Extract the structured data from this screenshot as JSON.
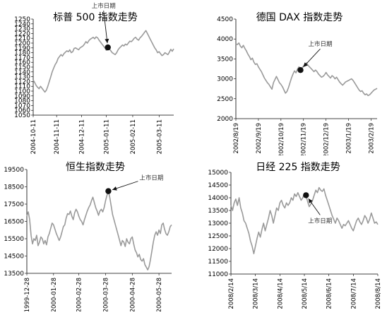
{
  "chart_data": [
    {
      "type": "line",
      "title": "标普 500 指数走势",
      "annotation": "上市日期",
      "ylim": [
        1050,
        1250
      ],
      "yticks": [
        1050,
        1060,
        1070,
        1080,
        1090,
        1100,
        1110,
        1120,
        1130,
        1140,
        1150,
        1160,
        1170,
        1180,
        1190,
        1200,
        1210,
        1220,
        1230,
        1240,
        1250
      ],
      "xtick_labels": [
        "2004-10-11",
        "2004-11-11",
        "2004-12-11",
        "2005-01-11",
        "2005-02-11",
        "2005-03-11"
      ],
      "xtick_index": [
        0,
        16,
        33,
        50,
        68,
        86
      ],
      "marker": {
        "x_index": 51,
        "y": 1191
      },
      "values": [
        1123,
        1118,
        1112,
        1108,
        1105,
        1110,
        1106,
        1102,
        1098,
        1102,
        1110,
        1120,
        1130,
        1140,
        1148,
        1155,
        1160,
        1168,
        1172,
        1176,
        1173,
        1178,
        1181,
        1184,
        1182,
        1186,
        1180,
        1182,
        1189,
        1190,
        1188,
        1186,
        1190,
        1192,
        1194,
        1198,
        1203,
        1200,
        1205,
        1208,
        1210,
        1212,
        1209,
        1213,
        1211,
        1206,
        1202,
        1198,
        1194,
        1190,
        1185,
        1191,
        1188,
        1184,
        1180,
        1178,
        1176,
        1180,
        1186,
        1190,
        1193,
        1196,
        1194,
        1198,
        1196,
        1200,
        1204,
        1203,
        1206,
        1210,
        1212,
        1208,
        1206,
        1211,
        1214,
        1218,
        1222,
        1226,
        1220,
        1214,
        1208,
        1202,
        1196,
        1190,
        1186,
        1180,
        1182,
        1178,
        1174,
        1176,
        1180,
        1178,
        1176,
        1181,
        1187,
        1183,
        1188
      ]
    },
    {
      "type": "line",
      "title": "德国 DAX 指数走势",
      "annotation": "上市日期",
      "ylim": [
        2000,
        4500
      ],
      "yticks": [
        2000,
        2500,
        3000,
        3500,
        4000,
        4500
      ],
      "xtick_labels": [
        "2002/8/19",
        "2002/9/19",
        "2002/10/19",
        "2002/11/19",
        "2002/12/19",
        "2003/1/19",
        "2003/2/19"
      ],
      "xtick_index": [
        0,
        15,
        30,
        45,
        60,
        75,
        90
      ],
      "marker": {
        "x_index": 43,
        "y": 3220
      },
      "values": [
        3880,
        3860,
        3900,
        3820,
        3780,
        3840,
        3760,
        3700,
        3620,
        3560,
        3480,
        3520,
        3420,
        3360,
        3380,
        3300,
        3240,
        3180,
        3100,
        3020,
        2960,
        2900,
        2860,
        2800,
        2740,
        2900,
        2980,
        3060,
        2980,
        2900,
        2860,
        2800,
        2720,
        2640,
        2680,
        2780,
        2900,
        3020,
        3120,
        3200,
        3150,
        3240,
        3300,
        3220,
        3260,
        3320,
        3360,
        3400,
        3340,
        3300,
        3260,
        3220,
        3180,
        3220,
        3180,
        3120,
        3080,
        3040,
        3060,
        3100,
        3160,
        3100,
        3060,
        3020,
        3080,
        3050,
        3000,
        3040,
        2980,
        2920,
        2880,
        2840,
        2880,
        2920,
        2940,
        2960,
        2980,
        3000,
        2960,
        2900,
        2840,
        2780,
        2720,
        2680,
        2700,
        2640,
        2600,
        2620,
        2580,
        2600,
        2640,
        2680,
        2720,
        2740,
        2760
      ]
    },
    {
      "type": "line",
      "title": "恒生指数走势",
      "annotation": "上市日期",
      "ylim": [
        13500,
        19500
      ],
      "yticks": [
        13500,
        14500,
        15500,
        16500,
        17500,
        18500,
        19500
      ],
      "xtick_labels": [
        "1999-12-28",
        "2000-01-28",
        "2000-02-28",
        "2000-03-28",
        "2000-04-28",
        "2000-05-28"
      ],
      "xtick_index": [
        0,
        19,
        37,
        56,
        75,
        94
      ],
      "marker": {
        "x_index": 58,
        "y": 18250
      },
      "values": [
        16800,
        17050,
        16600,
        15700,
        15200,
        15500,
        15400,
        15700,
        15100,
        15300,
        15600,
        15500,
        15200,
        15400,
        15150,
        15600,
        15800,
        16100,
        16400,
        16300,
        16050,
        15800,
        15600,
        15400,
        15600,
        15900,
        16200,
        16300,
        16700,
        16950,
        16900,
        17100,
        16800,
        16600,
        17000,
        17200,
        17050,
        16800,
        16600,
        16500,
        16300,
        16600,
        16850,
        17100,
        17300,
        17450,
        17700,
        17900,
        17600,
        17300,
        17100,
        16850,
        17100,
        17200,
        17050,
        17300,
        17700,
        18000,
        18250,
        17900,
        17400,
        16900,
        16600,
        16300,
        16000,
        15700,
        15400,
        15100,
        15400,
        15300,
        15050,
        15500,
        15300,
        15200,
        15500,
        15600,
        15200,
        14850,
        14700,
        14450,
        14600,
        14300,
        14200,
        14350,
        14000,
        13850,
        13700,
        13900,
        14300,
        14800,
        15300,
        15700,
        15900,
        15700,
        16000,
        15800,
        16300,
        16400,
        16050,
        15800,
        15700,
        15900,
        16200,
        16300
      ]
    },
    {
      "type": "line",
      "title": "日经 225 指数走势",
      "annotation": "上市日期",
      "ylim": [
        11000,
        15000
      ],
      "yticks": [
        11000,
        11500,
        12000,
        12500,
        13000,
        13500,
        14000,
        14500,
        15000
      ],
      "xtick_labels": [
        "2008/2/14",
        "2008/3/14",
        "2008/4/14",
        "2008/5/14",
        "2008/6/14",
        "2008/7/14",
        "2008/8/14"
      ],
      "xtick_index": [
        0,
        15,
        30,
        45,
        60,
        75,
        90
      ],
      "marker": {
        "x_index": 46,
        "y": 14100
      },
      "values": [
        13700,
        13500,
        13800,
        13950,
        13700,
        14000,
        13600,
        13400,
        13100,
        13000,
        12800,
        12600,
        12300,
        12100,
        11800,
        12100,
        12400,
        12650,
        12450,
        12750,
        13000,
        12700,
        12950,
        13200,
        13500,
        13300,
        13000,
        13300,
        13600,
        13500,
        13800,
        13900,
        13700,
        13600,
        13800,
        13700,
        13800,
        14000,
        13900,
        14150,
        14050,
        14200,
        14050,
        13900,
        14000,
        14150,
        14100,
        13850,
        13650,
        13750,
        13900,
        14100,
        14300,
        14200,
        14400,
        14300,
        14250,
        14350,
        14100,
        13900,
        13700,
        13500,
        13300,
        13150,
        13000,
        13200,
        13100,
        12950,
        12800,
        12950,
        12900,
        13000,
        13100,
        12950,
        12800,
        12700,
        12900,
        13100,
        13200,
        13050,
        12950,
        13100,
        13300,
        13200,
        13000,
        13150,
        13400,
        13200,
        13000,
        13050,
        12950
      ]
    }
  ]
}
